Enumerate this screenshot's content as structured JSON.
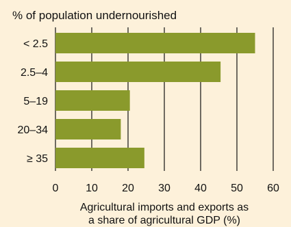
{
  "chart_data": {
    "type": "bar",
    "orientation": "horizontal",
    "title": "% of population undernourished",
    "categories": [
      "< 2.5",
      "2.5–4",
      "5–19",
      "20–34",
      "≥ 35"
    ],
    "values": [
      55,
      45.5,
      20.5,
      18,
      24.5
    ],
    "xlabel_lines": [
      "Agricultural imports and exports as",
      "a share of agricultural GDP (%)"
    ],
    "xlim": [
      0,
      60
    ],
    "xticks": [
      0,
      10,
      20,
      30,
      40,
      50,
      60
    ],
    "grid": "vertical",
    "bar_color": "#8a9a2c",
    "grid_color": "#111111"
  }
}
